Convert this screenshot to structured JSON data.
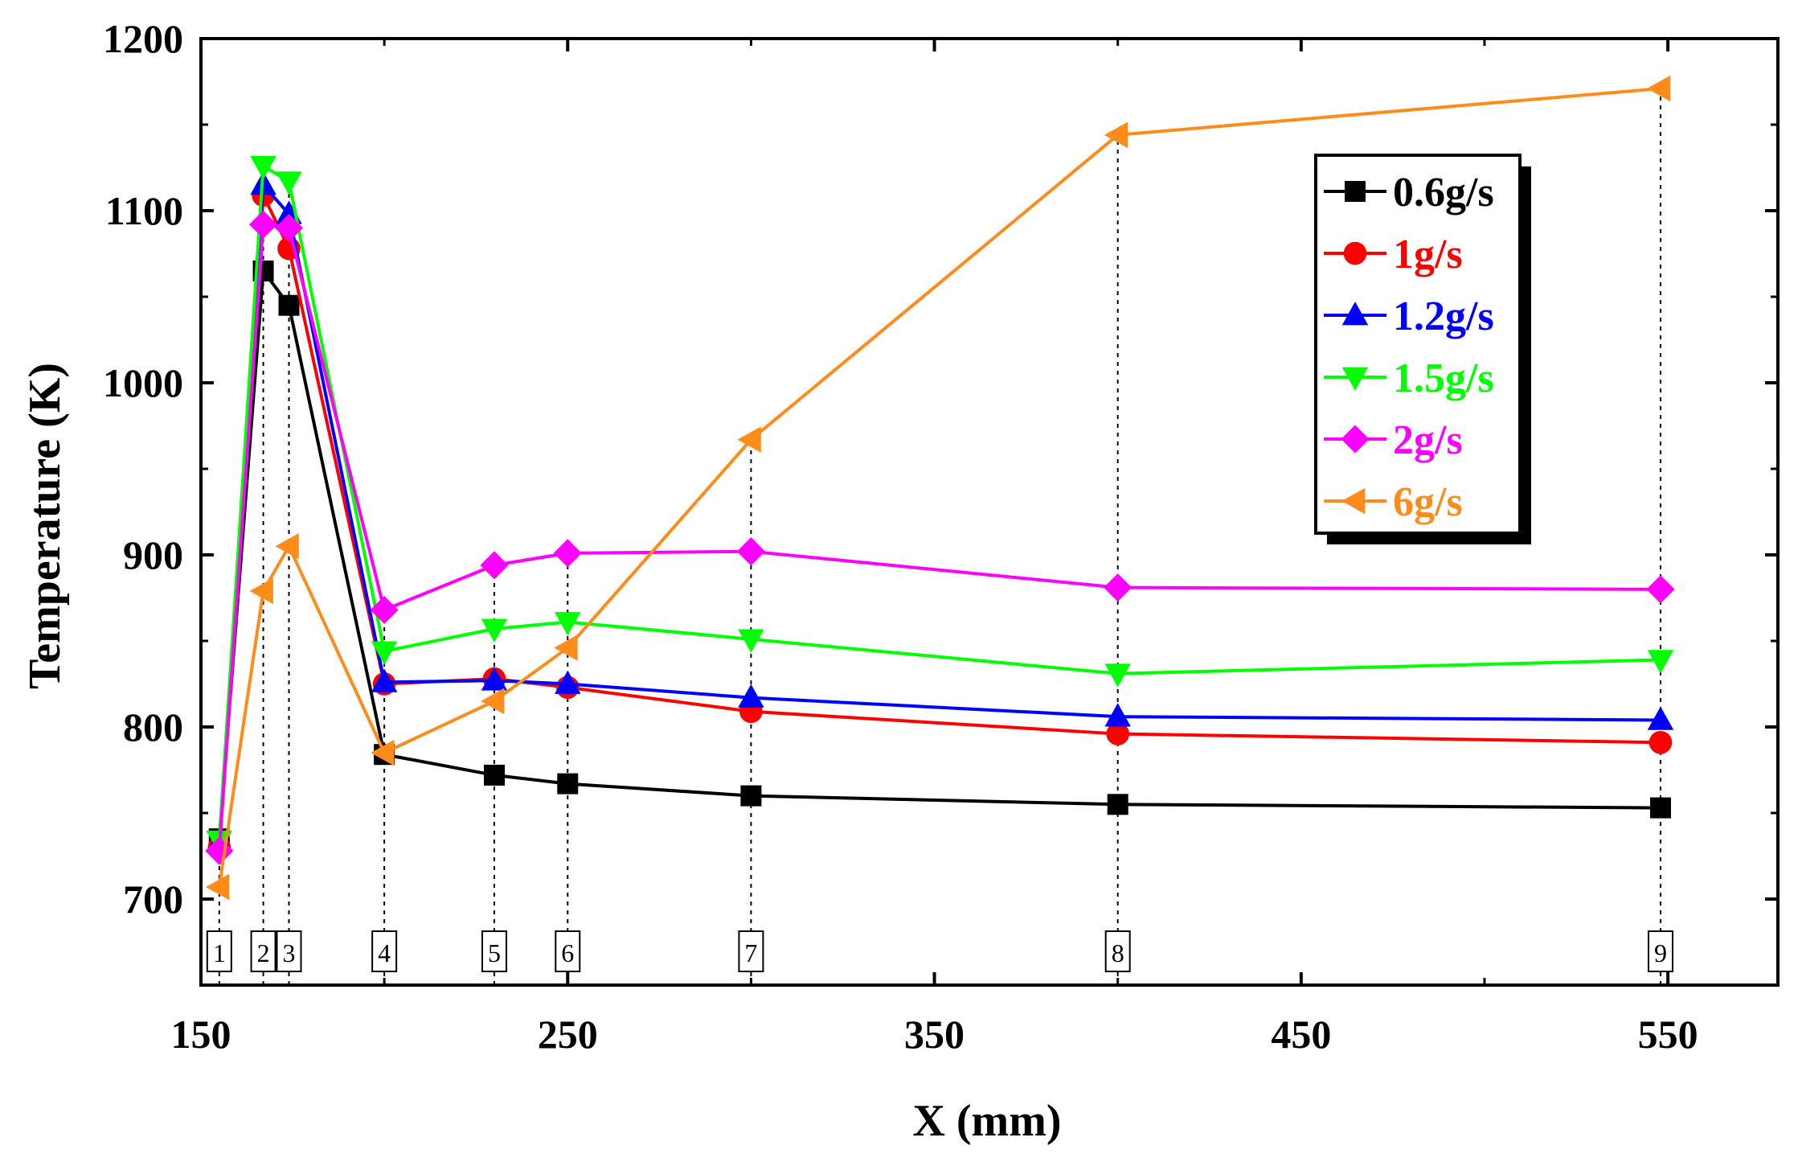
{
  "chart_data": {
    "type": "line",
    "xlabel": "X (mm)",
    "ylabel": "Temperature (K)",
    "xlim": [
      150,
      580
    ],
    "ylim": [
      650,
      1200
    ],
    "xticks": [
      150,
      250,
      350,
      450,
      550
    ],
    "yticks": [
      700,
      800,
      900,
      1000,
      1100,
      1200
    ],
    "legend_position": "top-right",
    "x": [
      155,
      167,
      174,
      200,
      230,
      250,
      300,
      400,
      548
    ],
    "series": [
      {
        "name": "0.6g/s",
        "color": "#000000",
        "marker": "square",
        "values": [
          735,
          1065,
          1045,
          784,
          772,
          767,
          760,
          755,
          753
        ]
      },
      {
        "name": "1g/s",
        "color": "#ff0000",
        "marker": "circle",
        "values": [
          730,
          1109,
          1078,
          825,
          828,
          823,
          809,
          796,
          791
        ]
      },
      {
        "name": "1.2g/s",
        "color": "#0000ff",
        "marker": "triangle-up",
        "values": [
          733,
          1115,
          1098,
          826,
          827,
          825,
          817,
          806,
          804
        ]
      },
      {
        "name": "1.5g/s",
        "color": "#00ff00",
        "marker": "triangle-down",
        "values": [
          734,
          1126,
          1117,
          844,
          857,
          861,
          851,
          831,
          839
        ]
      },
      {
        "name": "2g/s",
        "color": "#ff00ff",
        "marker": "diamond",
        "values": [
          728,
          1092,
          1090,
          868,
          894,
          901,
          902,
          881,
          880
        ]
      },
      {
        "name": "6g/s",
        "color": "#ff8c1a",
        "marker": "triangle-left",
        "values": [
          707,
          879,
          905,
          785,
          815,
          846,
          967,
          1144,
          1171
        ]
      }
    ],
    "position_markers": [
      {
        "label": "1",
        "x": 155
      },
      {
        "label": "2",
        "x": 167
      },
      {
        "label": "3",
        "x": 174
      },
      {
        "label": "4",
        "x": 200
      },
      {
        "label": "5",
        "x": 230
      },
      {
        "label": "6",
        "x": 250
      },
      {
        "label": "7",
        "x": 300
      },
      {
        "label": "8",
        "x": 400
      },
      {
        "label": "9",
        "x": 548
      }
    ]
  }
}
